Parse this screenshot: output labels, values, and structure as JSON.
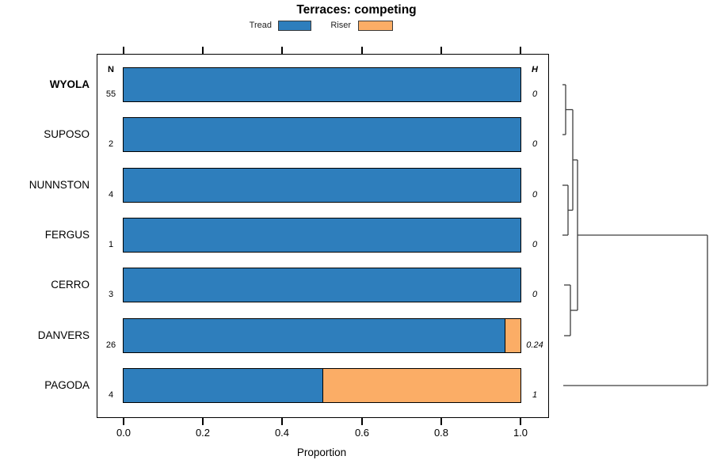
{
  "title": "Terraces: competing",
  "legend": {
    "items": [
      {
        "label": "Tread",
        "color": "#2E7EBC"
      },
      {
        "label": "Riser",
        "color": "#FBAD66"
      }
    ]
  },
  "table": {
    "n_header": "N",
    "h_header": "H"
  },
  "chart_data": {
    "type": "bar",
    "orientation": "horizontal",
    "stacked": true,
    "title": "Terraces: competing",
    "xlabel": "Proportion",
    "xlim": [
      0,
      1
    ],
    "xticks": [
      0.0,
      0.2,
      0.4,
      0.6,
      0.8,
      1.0
    ],
    "xtick_labels": [
      "0.0",
      "0.2",
      "0.4",
      "0.6",
      "0.8",
      "1.0"
    ],
    "grid": false,
    "legend_position": "top",
    "categories": [
      "WYOLA",
      "SUPOSO",
      "NUNNSTON",
      "FERGUS",
      "CERRO",
      "DANVERS",
      "PAGODA"
    ],
    "highlighted_category": "WYOLA",
    "n_values": [
      55,
      2,
      4,
      1,
      3,
      26,
      4
    ],
    "h_values": [
      "0",
      "0",
      "0",
      "0",
      "0",
      "0.24",
      "1"
    ],
    "series": [
      {
        "name": "Tread",
        "color": "#2E7EBC",
        "values": [
          1,
          1,
          1,
          1,
          1,
          0.96,
          0.5
        ]
      },
      {
        "name": "Riser",
        "color": "#FBAD66",
        "values": [
          0,
          0,
          0,
          0,
          0,
          0.04,
          0.5
        ]
      }
    ],
    "dendrogram": {
      "position": "right",
      "line_color": "#3d3d3d",
      "segments": [
        [
          710,
          107,
          714,
          107
        ],
        [
          710,
          170,
          714,
          170
        ],
        [
          714,
          107,
          714,
          170
        ],
        [
          714,
          138.5,
          723,
          138.5
        ],
        [
          710,
          234,
          717,
          234
        ],
        [
          710,
          297,
          717,
          297
        ],
        [
          717,
          234,
          717,
          297
        ],
        [
          717,
          265.5,
          723,
          265.5
        ],
        [
          723,
          138.5,
          723,
          265.5
        ],
        [
          723,
          202,
          729,
          202
        ],
        [
          712,
          360,
          720,
          360
        ],
        [
          712,
          424,
          720,
          424
        ],
        [
          720,
          360,
          720,
          424
        ],
        [
          720,
          392,
          729,
          392
        ],
        [
          729,
          202,
          729,
          392
        ],
        [
          729,
          297,
          893,
          297
        ],
        [
          893,
          297,
          893,
          487
        ],
        [
          711,
          487,
          893,
          487
        ]
      ]
    }
  }
}
